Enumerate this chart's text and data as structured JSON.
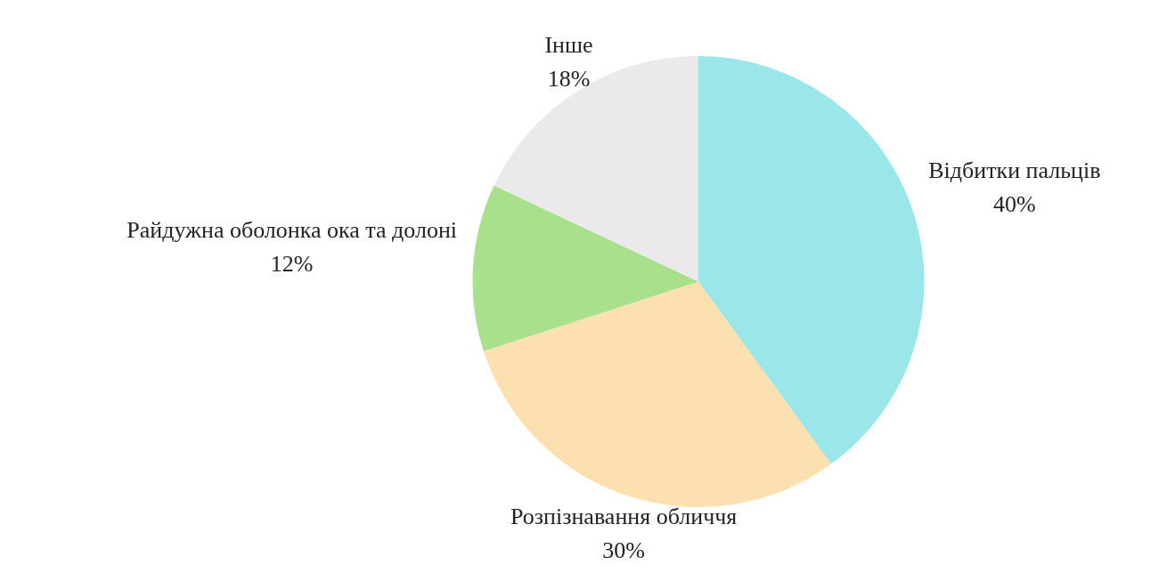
{
  "chart_data": {
    "type": "pie",
    "categories": [
      "Відбитки пальців",
      "Розпізнавання обличчя",
      "Райдужна оболонка ока та долоні",
      "Інше"
    ],
    "values": [
      40,
      30,
      12,
      18
    ],
    "colors": [
      "#9ae6e8",
      "#fde0b0",
      "#a8e08c",
      "#ebe9eb"
    ],
    "value_labels": [
      "40%",
      "30%",
      "12%",
      "18%"
    ],
    "legend": false
  }
}
